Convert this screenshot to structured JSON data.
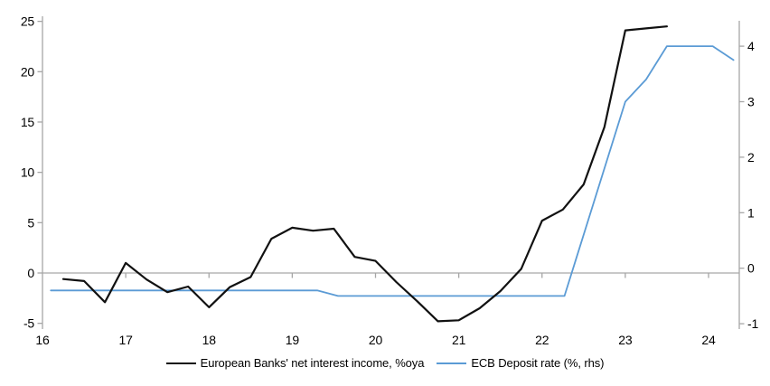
{
  "chart_data": {
    "type": "line",
    "title": "",
    "grid": "zero-gridline-only",
    "axis_color": "#a6a6a6",
    "x_axis": {
      "tick_labels": [
        "16",
        "17",
        "18",
        "19",
        "20",
        "21",
        "22",
        "23",
        "24"
      ],
      "ticks": [
        16,
        17,
        18,
        19,
        20,
        21,
        22,
        23,
        24
      ],
      "min": 16,
      "max": 24.37
    },
    "left_axis": {
      "tick_labels": [
        "-5",
        "0",
        "5",
        "10",
        "15",
        "20",
        "25"
      ],
      "ticks": [
        -5,
        0,
        5,
        10,
        15,
        20,
        25
      ],
      "min": -5,
      "max": 25
    },
    "right_axis": {
      "tick_labels": [
        "-1",
        "0",
        "1",
        "2",
        "3",
        "4"
      ],
      "ticks": [
        -1,
        0,
        1,
        2,
        3,
        4
      ],
      "min": -1,
      "max": 4.5
    },
    "series": [
      {
        "name": "European Banks' net interest income, %oya",
        "axis": "left",
        "color": "#111111",
        "stroke_width": 2.2,
        "points": [
          [
            16.25,
            -0.6
          ],
          [
            16.5,
            -0.8
          ],
          [
            16.75,
            -2.9
          ],
          [
            17.0,
            1.0
          ],
          [
            17.25,
            -0.65
          ],
          [
            17.5,
            -1.9
          ],
          [
            17.75,
            -1.35
          ],
          [
            18.0,
            -3.4
          ],
          [
            18.25,
            -1.4
          ],
          [
            18.5,
            -0.4
          ],
          [
            18.75,
            3.4
          ],
          [
            19.0,
            4.5
          ],
          [
            19.25,
            4.2
          ],
          [
            19.5,
            4.4
          ],
          [
            19.75,
            1.6
          ],
          [
            20.0,
            1.2
          ],
          [
            20.25,
            -0.9
          ],
          [
            20.5,
            -2.8
          ],
          [
            20.75,
            -4.8
          ],
          [
            21.0,
            -4.7
          ],
          [
            21.25,
            -3.5
          ],
          [
            21.5,
            -1.8
          ],
          [
            21.75,
            0.4
          ],
          [
            22.0,
            5.2
          ],
          [
            22.25,
            6.3
          ],
          [
            22.5,
            8.8
          ],
          [
            22.75,
            14.5
          ],
          [
            23.0,
            24.1
          ],
          [
            23.25,
            24.3
          ],
          [
            23.5,
            24.5
          ]
        ]
      },
      {
        "name": "ECB Deposit rate (%, rhs)",
        "axis": "right",
        "color": "#5b9bd5",
        "stroke_width": 1.8,
        "points": [
          [
            16.1,
            -0.4
          ],
          [
            19.3,
            -0.4
          ],
          [
            19.55,
            -0.5
          ],
          [
            22.27,
            -0.5
          ],
          [
            23.0,
            3.0
          ],
          [
            23.25,
            3.4
          ],
          [
            23.5,
            4.0
          ],
          [
            24.05,
            4.0
          ],
          [
            24.3,
            3.75
          ]
        ]
      }
    ],
    "legend_position": "bottom-center"
  }
}
